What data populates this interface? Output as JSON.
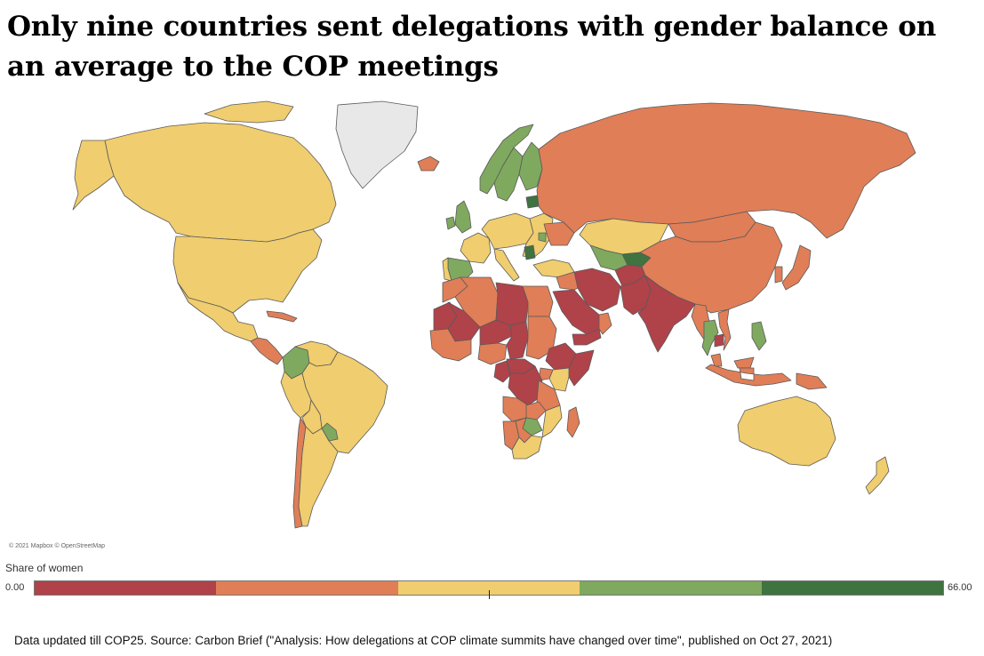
{
  "title": "Only nine countries sent delegations with gender balance on an average to the COP meetings",
  "map": {
    "attribution": "© 2021 Mapbox © OpenStreetMap",
    "base_color": "#e8e8e8",
    "border_color": "#5a5a5a",
    "regions": [
      {
        "name": "Canada",
        "color": "#f0cd6e"
      },
      {
        "name": "United States",
        "color": "#f0cd6e"
      },
      {
        "name": "Alaska",
        "color": "#f0cd6e"
      },
      {
        "name": "Greenland",
        "color": "#e8e8e8"
      },
      {
        "name": "Mexico",
        "color": "#f0cd6e"
      },
      {
        "name": "Central America",
        "color": "#e07e57"
      },
      {
        "name": "Cuba",
        "color": "#e07e57"
      },
      {
        "name": "Colombia",
        "color": "#7fa95f"
      },
      {
        "name": "Venezuela",
        "color": "#f0cd6e"
      },
      {
        "name": "Brazil",
        "color": "#f0cd6e"
      },
      {
        "name": "Peru",
        "color": "#f0cd6e"
      },
      {
        "name": "Bolivia",
        "color": "#f0cd6e"
      },
      {
        "name": "Paraguay",
        "color": "#7fa95f"
      },
      {
        "name": "Chile",
        "color": "#e07e57"
      },
      {
        "name": "Argentina",
        "color": "#f0cd6e"
      },
      {
        "name": "Iceland",
        "color": "#e07e57"
      },
      {
        "name": "Norway",
        "color": "#7fa95f"
      },
      {
        "name": "Sweden",
        "color": "#7fa95f"
      },
      {
        "name": "Finland",
        "color": "#7fa95f"
      },
      {
        "name": "United Kingdom",
        "color": "#7fa95f"
      },
      {
        "name": "Ireland",
        "color": "#7fa95f"
      },
      {
        "name": "France",
        "color": "#f0cd6e"
      },
      {
        "name": "Spain",
        "color": "#7fa95f"
      },
      {
        "name": "Portugal",
        "color": "#f0cd6e"
      },
      {
        "name": "Central Europe",
        "color": "#f0cd6e"
      },
      {
        "name": "Italy",
        "color": "#f0cd6e"
      },
      {
        "name": "Eastern Europe",
        "color": "#f0cd6e"
      },
      {
        "name": "Latvia",
        "color": "#3f7340"
      },
      {
        "name": "Ukraine",
        "color": "#e07e57"
      },
      {
        "name": "Moldova",
        "color": "#7fa95f"
      },
      {
        "name": "Serbia",
        "color": "#3f7340"
      },
      {
        "name": "Turkey",
        "color": "#f0cd6e"
      },
      {
        "name": "Russia",
        "color": "#e07e57"
      },
      {
        "name": "Kazakhstan",
        "color": "#f0cd6e"
      },
      {
        "name": "Central Asia",
        "color": "#7fa95f"
      },
      {
        "name": "Kyrgyzstan",
        "color": "#3f7340"
      },
      {
        "name": "Mongolia",
        "color": "#e07e57"
      },
      {
        "name": "China",
        "color": "#e07e57"
      },
      {
        "name": "Japan",
        "color": "#e07e57"
      },
      {
        "name": "South Korea",
        "color": "#e07e57"
      },
      {
        "name": "Iran",
        "color": "#b0424a"
      },
      {
        "name": "Afghanistan",
        "color": "#b0424a"
      },
      {
        "name": "Pakistan",
        "color": "#b0424a"
      },
      {
        "name": "India",
        "color": "#b0424a"
      },
      {
        "name": "Saudi Arabia",
        "color": "#b0424a"
      },
      {
        "name": "Yemen",
        "color": "#b0424a"
      },
      {
        "name": "Oman",
        "color": "#e07e57"
      },
      {
        "name": "Iraq",
        "color": "#e07e57"
      },
      {
        "name": "Myanmar",
        "color": "#e07e57"
      },
      {
        "name": "Thailand",
        "color": "#7fa95f"
      },
      {
        "name": "Cambodia",
        "color": "#b0424a"
      },
      {
        "name": "Vietnam",
        "color": "#e07e57"
      },
      {
        "name": "Philippines",
        "color": "#7fa95f"
      },
      {
        "name": "Malaysia",
        "color": "#e07e57"
      },
      {
        "name": "Indonesia",
        "color": "#e07e57"
      },
      {
        "name": "Papua New Guinea",
        "color": "#e07e57"
      },
      {
        "name": "Australia",
        "color": "#f0cd6e"
      },
      {
        "name": "New Zealand",
        "color": "#f0cd6e"
      },
      {
        "name": "Morocco",
        "color": "#e07e57"
      },
      {
        "name": "Algeria",
        "color": "#e07e57"
      },
      {
        "name": "Libya",
        "color": "#b0424a"
      },
      {
        "name": "Egypt",
        "color": "#e07e57"
      },
      {
        "name": "Mauritania",
        "color": "#b0424a"
      },
      {
        "name": "Mali",
        "color": "#b0424a"
      },
      {
        "name": "Niger",
        "color": "#b0424a"
      },
      {
        "name": "Chad",
        "color": "#b0424a"
      },
      {
        "name": "Sudan",
        "color": "#e07e57"
      },
      {
        "name": "West Africa",
        "color": "#e07e57"
      },
      {
        "name": "Nigeria",
        "color": "#e07e57"
      },
      {
        "name": "Ethiopia",
        "color": "#b0424a"
      },
      {
        "name": "Somalia",
        "color": "#b0424a"
      },
      {
        "name": "Kenya",
        "color": "#f0cd6e"
      },
      {
        "name": "Uganda",
        "color": "#e07e57"
      },
      {
        "name": "Cameroon",
        "color": "#b0424a"
      },
      {
        "name": "Central African Republic",
        "color": "#b0424a"
      },
      {
        "name": "DR Congo",
        "color": "#b0424a"
      },
      {
        "name": "Tanzania",
        "color": "#e07e57"
      },
      {
        "name": "Angola",
        "color": "#e07e57"
      },
      {
        "name": "Zambia",
        "color": "#e07e57"
      },
      {
        "name": "Mozambique",
        "color": "#f0cd6e"
      },
      {
        "name": "Zimbabwe",
        "color": "#7fa95f"
      },
      {
        "name": "Namibia",
        "color": "#e07e57"
      },
      {
        "name": "Botswana",
        "color": "#e07e57"
      },
      {
        "name": "South Africa",
        "color": "#f0cd6e"
      },
      {
        "name": "Madagascar",
        "color": "#e07e57"
      }
    ]
  },
  "legend": {
    "title": "Share of women",
    "min_label": "0.00",
    "max_label": "66.00",
    "bins": [
      "#b0424a",
      "#e07e57",
      "#f0cd6e",
      "#7fa95f",
      "#3f7340"
    ]
  },
  "source": "Data updated till COP25. Source: Carbon Brief (\"Analysis: How delegations at COP climate summits have changed over time\", published on Oct 27, 2021)"
}
